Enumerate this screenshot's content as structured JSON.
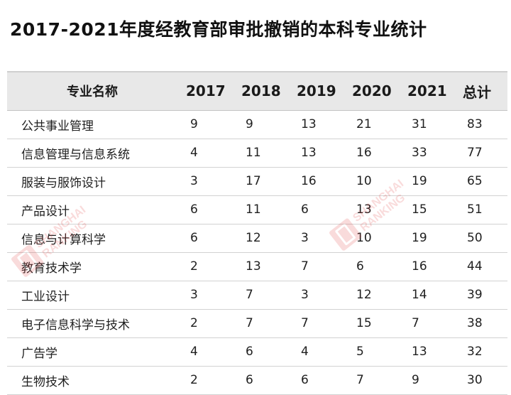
{
  "page": {
    "title": "2017-2021年度经教育部审批撤销的本科专业统计"
  },
  "watermark": {
    "text_line1": "SHANGHAI",
    "text_line2": "RANKING",
    "color": "#e13b3b"
  },
  "chart_data": {
    "type": "table",
    "title": "2017-2021年度经教育部审批撤销的本科专业统计",
    "columns": [
      "专业名称",
      "2017",
      "2018",
      "2019",
      "2020",
      "2021",
      "总计"
    ],
    "rows": [
      {
        "name": "公共事业管理",
        "values": [
          9,
          9,
          13,
          21,
          31,
          83
        ]
      },
      {
        "name": "信息管理与信息系统",
        "values": [
          4,
          11,
          13,
          16,
          33,
          77
        ]
      },
      {
        "name": "服装与服饰设计",
        "values": [
          3,
          17,
          16,
          10,
          19,
          65
        ]
      },
      {
        "name": "产品设计",
        "values": [
          6,
          11,
          6,
          13,
          15,
          51
        ]
      },
      {
        "name": "信息与计算科学",
        "values": [
          6,
          12,
          3,
          10,
          19,
          50
        ]
      },
      {
        "name": "教育技术学",
        "values": [
          2,
          13,
          7,
          6,
          16,
          44
        ]
      },
      {
        "name": "工业设计",
        "values": [
          3,
          7,
          3,
          12,
          14,
          39
        ]
      },
      {
        "name": "电子信息科学与技术",
        "values": [
          2,
          7,
          7,
          15,
          7,
          38
        ]
      },
      {
        "name": "广告学",
        "values": [
          4,
          6,
          4,
          5,
          13,
          32
        ]
      },
      {
        "name": "生物技术",
        "values": [
          2,
          6,
          6,
          7,
          9,
          30
        ]
      }
    ]
  }
}
